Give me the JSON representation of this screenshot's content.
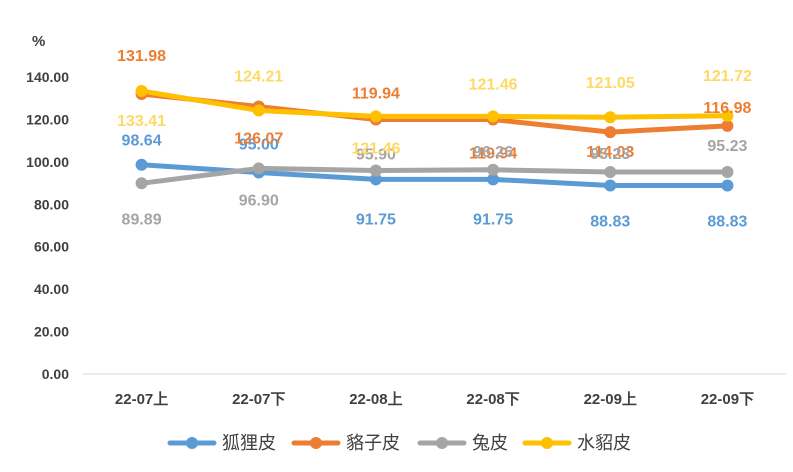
{
  "chart_data": {
    "type": "line",
    "unit_label": "%",
    "categories": [
      "22-07上",
      "22-07下",
      "22-08上",
      "22-08下",
      "22-09上",
      "22-09下"
    ],
    "y_ticks": [
      "0.00",
      "20.00",
      "40.00",
      "60.00",
      "80.00",
      "100.00",
      "120.00",
      "140.00"
    ],
    "ylim": [
      0,
      140
    ],
    "grid": false,
    "legend_position": "bottom",
    "series": [
      {
        "name": "狐狸皮",
        "color": "#5B9BD5",
        "values": [
          98.64,
          95.0,
          91.75,
          91.75,
          88.83,
          88.83
        ],
        "labels": [
          "98.64",
          "95.00",
          "91.75",
          "91.75",
          "88.83",
          "88.83"
        ]
      },
      {
        "name": "貉子皮",
        "color": "#ED7D31",
        "values": [
          131.98,
          126.07,
          119.94,
          119.94,
          114.03,
          116.98
        ],
        "labels": [
          "131.98",
          "126.07",
          "119.94",
          "119.94",
          "114.03",
          "116.98"
        ]
      },
      {
        "name": "兔皮",
        "color": "#A5A5A5",
        "values": [
          89.89,
          96.9,
          95.9,
          96.26,
          95.23,
          95.23
        ],
        "labels": [
          "89.89",
          "96.90",
          "95.90",
          "96.26",
          "95.23",
          "95.23"
        ]
      },
      {
        "name": "水貂皮",
        "color": "#FFC000",
        "label_color": "#FFD966",
        "values": [
          133.41,
          124.21,
          121.46,
          121.46,
          121.05,
          121.72
        ],
        "labels": [
          "133.41",
          "124.21",
          "121.46",
          "121.46",
          "121.05",
          "121.72"
        ]
      }
    ]
  }
}
